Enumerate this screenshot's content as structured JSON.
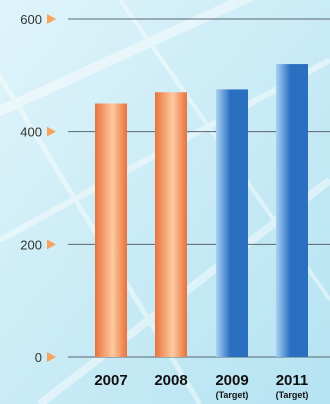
{
  "chart_data": {
    "type": "bar",
    "title": "",
    "xlabel": "",
    "ylabel": "",
    "ylim": [
      0,
      600
    ],
    "yticks": [
      0,
      200,
      400,
      600
    ],
    "grid": true,
    "legend": "none",
    "categories": [
      {
        "label": "2007",
        "sublabel": ""
      },
      {
        "label": "2008",
        "sublabel": ""
      },
      {
        "label": "2009",
        "sublabel": "(Target)"
      },
      {
        "label": "2011",
        "sublabel": "(Target)"
      }
    ],
    "values": [
      450,
      470,
      475,
      520
    ],
    "bar_styles": [
      "actual",
      "actual",
      "target",
      "target"
    ],
    "colors": {
      "actual_dark": "#e8723c",
      "actual_light": "#ffc9a0",
      "target_dark": "#2a6fc0",
      "target_light": "#a9d2f5",
      "background_top": "#dff4fa",
      "background_bottom": "#b5e3f2",
      "tick_marker": "#f7a35c",
      "gridline": "#5a6670",
      "text": "#111111",
      "tick_text": "#333333"
    }
  }
}
